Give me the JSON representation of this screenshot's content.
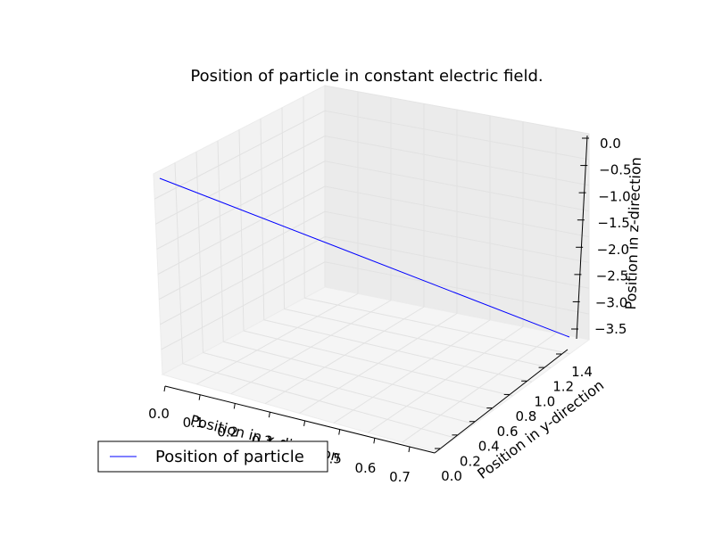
{
  "chart_data": {
    "type": "line",
    "projection": "3d",
    "title": "Position of particle in constant electric field.",
    "xlabel": "Position in x-direction",
    "ylabel": "Position in y-direction",
    "zlabel": "Position in z-direction",
    "xlim": [
      0.0,
      0.75
    ],
    "ylim": [
      0.0,
      1.5
    ],
    "zlim": [
      -3.7,
      0.05
    ],
    "xticks": [
      "0.0",
      "0.1",
      "0.2",
      "0.3",
      "0.4",
      "0.5",
      "0.6",
      "0.7"
    ],
    "yticks": [
      "0.0",
      "0.2",
      "0.4",
      "0.6",
      "0.8",
      "1.0",
      "1.2",
      "1.4"
    ],
    "zticks": [
      "0.0",
      "−0.5",
      "−1.0",
      "−1.5",
      "−2.0",
      "−2.5",
      "−3.0",
      "−3.5"
    ],
    "grid": true,
    "legend": "lower-left",
    "series": [
      {
        "name": "Position of particle",
        "color": "#0000ff",
        "start": {
          "x": 0.0,
          "y": 0.0,
          "z": -0.3
        },
        "end": {
          "x": 0.75,
          "y": 1.5,
          "z": -3.7
        }
      }
    ]
  }
}
